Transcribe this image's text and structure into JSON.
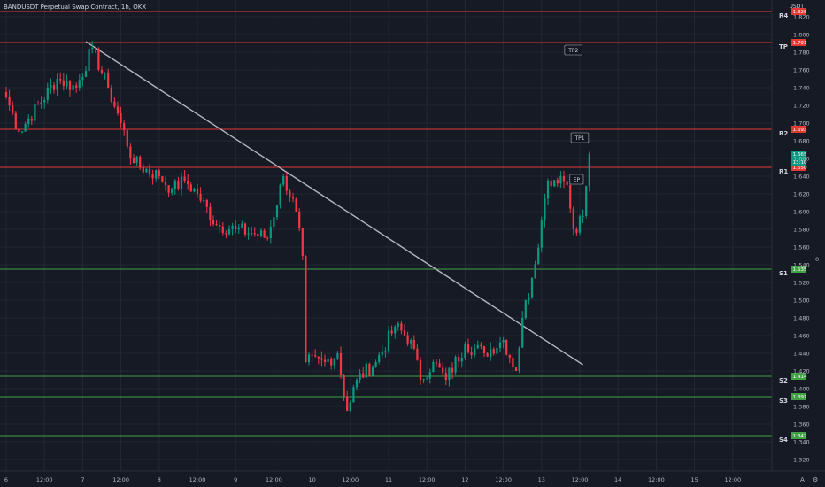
{
  "title": "BANDUSDT Perpetual Swap Contract, 1h, OKX",
  "currency": "USDT",
  "price_axis": {
    "ticks": [
      "1.820",
      "1.800",
      "1.780",
      "1.760",
      "1.740",
      "1.720",
      "1.700",
      "1.680",
      "1.660",
      "1.640",
      "1.620",
      "1.600",
      "1.580",
      "1.560",
      "1.540",
      "1.520",
      "1.500",
      "1.480",
      "1.460",
      "1.440",
      "1.420",
      "1.400",
      "1.380",
      "1.360",
      "1.340",
      "1.320"
    ],
    "side_label": "0"
  },
  "time_axis": {
    "ticks": [
      {
        "label": "6",
        "t": 0
      },
      {
        "label": "12:00",
        "t": 12
      },
      {
        "label": "7",
        "t": 24
      },
      {
        "label": "12:00",
        "t": 36
      },
      {
        "label": "8",
        "t": 48
      },
      {
        "label": "12:00",
        "t": 60
      },
      {
        "label": "9",
        "t": 72
      },
      {
        "label": "12:00",
        "t": 84
      },
      {
        "label": "10",
        "t": 96
      },
      {
        "label": "12:00",
        "t": 108
      },
      {
        "label": "11",
        "t": 120
      },
      {
        "label": "12:00",
        "t": 132
      },
      {
        "label": "12",
        "t": 144
      },
      {
        "label": "12:00",
        "t": 156
      },
      {
        "label": "13",
        "t": 168
      },
      {
        "label": "12:00",
        "t": 180
      },
      {
        "label": "14",
        "t": 192
      },
      {
        "label": "12:00",
        "t": 204
      },
      {
        "label": "15",
        "t": 216
      },
      {
        "label": "12:00",
        "t": 228
      }
    ],
    "corner_labels": [
      "A",
      "⚙"
    ]
  },
  "levels": [
    {
      "name": "R4",
      "price": 1.826,
      "label": "1.826",
      "color": "#e53935"
    },
    {
      "name": "TP",
      "price": 1.791,
      "label": "1.791",
      "color": "#e53935"
    },
    {
      "name": "R2",
      "price": 1.693,
      "label": "1.693",
      "color": "#e53935"
    },
    {
      "name": "R1",
      "price": 1.65,
      "label": "1.650",
      "color": "#e53935"
    },
    {
      "name": "S1",
      "price": 1.535,
      "label": "1.535",
      "color": "#43a047"
    },
    {
      "name": "S2",
      "price": 1.414,
      "label": "1.414",
      "color": "#43a047"
    },
    {
      "name": "S3",
      "price": 1.391,
      "label": "1.391",
      "color": "#43a047"
    },
    {
      "name": "S4",
      "price": 1.347,
      "label": "1.347",
      "color": "#43a047"
    }
  ],
  "current_price": {
    "price": 1.665,
    "label": "1.665",
    "countdown": "13:10",
    "color": "#089981"
  },
  "annotations": [
    {
      "text": "TP2",
      "t": 178,
      "price": 1.782
    },
    {
      "text": "TP1",
      "t": 180,
      "price": 1.683
    },
    {
      "text": "EP",
      "t": 179,
      "price": 1.636
    }
  ],
  "trendline": {
    "from": {
      "t": 25,
      "price": 1.792
    },
    "to": {
      "t": 181,
      "price": 1.427
    },
    "color": "#b2b5be"
  },
  "colors": {
    "up": "#089981",
    "down": "#f23645",
    "background": "#161a25",
    "grid": "#232734",
    "text": "#b2b5be"
  },
  "chart_data": {
    "type": "candlestick",
    "symbol": "BANDUSDT Perpetual Swap Contract",
    "interval": "1h",
    "exchange": "OKX",
    "ylim": [
      1.31,
      1.83
    ],
    "x_units": "hours since day 6 00:00",
    "key_points": [
      {
        "t": 0,
        "close": 1.73
      },
      {
        "t": 4,
        "close": 1.69
      },
      {
        "t": 16,
        "close": 1.75
      },
      {
        "t": 22,
        "close": 1.74
      },
      {
        "t": 27,
        "close": 1.785
      },
      {
        "t": 32,
        "close": 1.74
      },
      {
        "t": 36,
        "close": 1.7
      },
      {
        "t": 40,
        "close": 1.655
      },
      {
        "t": 48,
        "close": 1.64
      },
      {
        "t": 52,
        "close": 1.625
      },
      {
        "t": 56,
        "close": 1.635
      },
      {
        "t": 60,
        "close": 1.62
      },
      {
        "t": 66,
        "close": 1.585
      },
      {
        "t": 72,
        "close": 1.58
      },
      {
        "t": 78,
        "close": 1.575
      },
      {
        "t": 82,
        "close": 1.57
      },
      {
        "t": 87,
        "close": 1.64
      },
      {
        "t": 91,
        "close": 1.6
      },
      {
        "t": 93,
        "close": 1.55
      },
      {
        "t": 94,
        "close": 1.43
      },
      {
        "t": 100,
        "close": 1.43
      },
      {
        "t": 104,
        "close": 1.44
      },
      {
        "t": 107,
        "close": 1.375
      },
      {
        "t": 110,
        "close": 1.41
      },
      {
        "t": 116,
        "close": 1.43
      },
      {
        "t": 122,
        "close": 1.47
      },
      {
        "t": 127,
        "close": 1.455
      },
      {
        "t": 130,
        "close": 1.41
      },
      {
        "t": 134,
        "close": 1.43
      },
      {
        "t": 138,
        "close": 1.41
      },
      {
        "t": 144,
        "close": 1.45
      },
      {
        "t": 150,
        "close": 1.44
      },
      {
        "t": 156,
        "close": 1.455
      },
      {
        "t": 160,
        "close": 1.42
      },
      {
        "t": 162,
        "close": 1.48
      },
      {
        "t": 165,
        "close": 1.525
      },
      {
        "t": 168,
        "close": 1.59
      },
      {
        "t": 170,
        "close": 1.635
      },
      {
        "t": 174,
        "close": 1.64
      },
      {
        "t": 176,
        "close": 1.63
      },
      {
        "t": 178,
        "close": 1.58
      },
      {
        "t": 181,
        "close": 1.595
      },
      {
        "t": 183,
        "close": 1.665
      }
    ]
  }
}
